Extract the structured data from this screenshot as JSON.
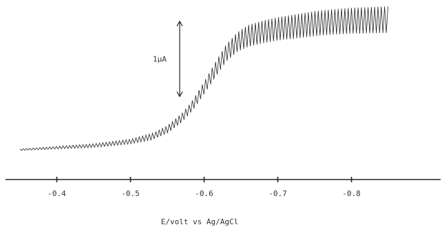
{
  "chart_data": {
    "type": "line",
    "title": "",
    "xlabel": "E/volt vs Ag/AgCl",
    "ylabel": "",
    "x_ticks": [
      "-0.4",
      "-0.5",
      "-0.6",
      "-0.7",
      "-0.8"
    ],
    "x_tick_values": [
      -0.4,
      -0.5,
      -0.6,
      -0.7,
      -0.8
    ],
    "xlim": [
      -0.35,
      -0.86
    ],
    "ylim": [
      0,
      1.5
    ],
    "scale_bar": {
      "label": "1μA",
      "value": 1.0
    },
    "grid": false,
    "legend": "none",
    "series": [
      {
        "x": [
          -0.35,
          -0.4,
          -0.45,
          -0.5,
          -0.53,
          -0.55,
          -0.57,
          -0.585,
          -0.6,
          -0.615,
          -0.63,
          -0.645,
          -0.66,
          -0.68,
          -0.7,
          -0.73,
          -0.76,
          -0.8,
          -0.85
        ],
        "y": [
          0.0,
          0.02,
          0.04,
          0.08,
          0.13,
          0.2,
          0.32,
          0.45,
          0.62,
          0.8,
          0.97,
          1.08,
          1.14,
          1.18,
          1.21,
          1.24,
          1.27,
          1.29,
          1.3
        ]
      }
    ],
    "oscillation": {
      "x_start": -0.55,
      "amplitude": [
        0.01,
        0.03,
        0.06,
        0.1,
        0.14,
        0.16,
        0.17
      ],
      "amplitude_x": [
        -0.35,
        -0.5,
        -0.58,
        -0.62,
        -0.66,
        -0.75,
        -0.85
      ]
    },
    "colors": {
      "trace": "#222222",
      "axis": "#222222",
      "text": "#333333"
    }
  }
}
